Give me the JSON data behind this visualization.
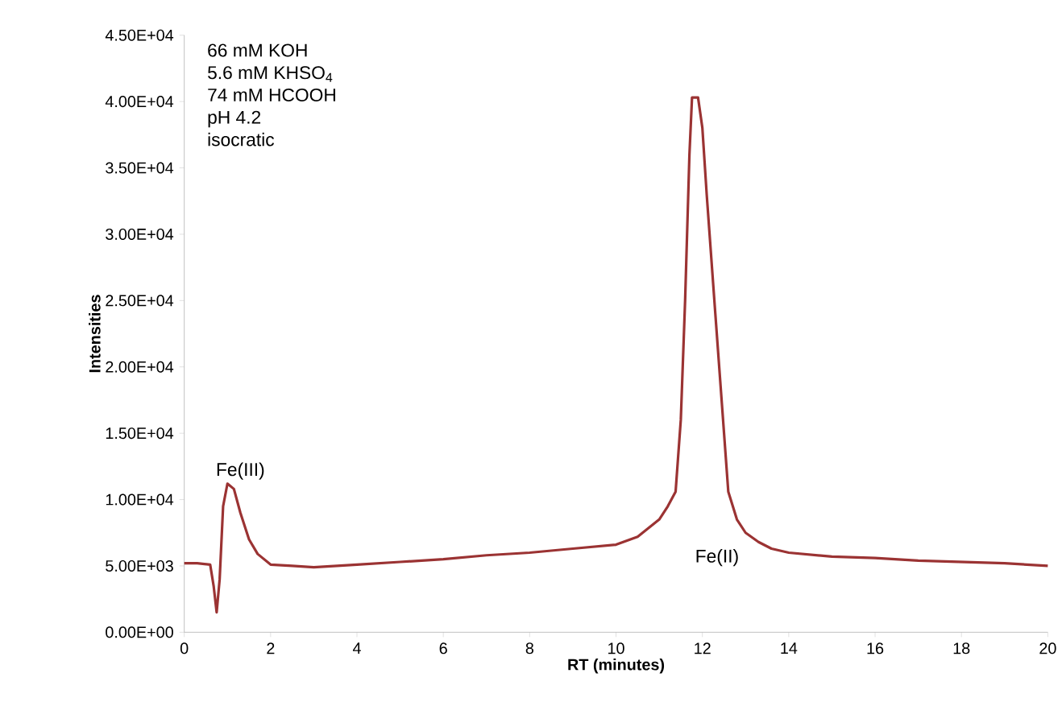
{
  "chart_data": {
    "type": "line",
    "xlabel": "RT (minutes)",
    "ylabel": "Intensities",
    "x": [
      0,
      0.3,
      0.6,
      0.68,
      0.75,
      0.82,
      0.9,
      1.0,
      1.15,
      1.3,
      1.5,
      1.7,
      2.0,
      2.5,
      3.0,
      4.0,
      5.0,
      6.0,
      7.0,
      8.0,
      9.0,
      10.0,
      10.5,
      11.0,
      11.2,
      11.38,
      11.5,
      11.6,
      11.7,
      11.76,
      11.9,
      12.0,
      12.1,
      12.3,
      12.6,
      12.8,
      13.0,
      13.3,
      13.6,
      14.0,
      15.0,
      16.0,
      17.0,
      18.0,
      19.0,
      20.0
    ],
    "series": [
      {
        "color": "#9b3333",
        "values": [
          5200,
          5200,
          5100,
          3500,
          1500,
          4000,
          9500,
          11200,
          10800,
          9000,
          7000,
          5900,
          5100,
          5000,
          4900,
          5100,
          5300,
          5500,
          5800,
          6000,
          6300,
          6600,
          7200,
          8500,
          9500,
          10600,
          16000,
          25000,
          36000,
          40300,
          40300,
          38000,
          33000,
          24000,
          10600,
          8500,
          7500,
          6800,
          6300,
          6000,
          5700,
          5600,
          5400,
          5300,
          5200,
          5000
        ]
      }
    ],
    "marker": "none",
    "line_style": "solid",
    "grid": false,
    "xlim": [
      0,
      20
    ],
    "xticks": [
      0,
      2,
      4,
      6,
      8,
      10,
      12,
      14,
      16,
      18,
      20
    ],
    "ylim": [
      0,
      45000
    ],
    "yticks": [
      {
        "value": 0,
        "label": "0.00E+00"
      },
      {
        "value": 5000,
        "label": "5.00E+03"
      },
      {
        "value": 10000,
        "label": "1.00E+04"
      },
      {
        "value": 15000,
        "label": "1.50E+04"
      },
      {
        "value": 20000,
        "label": "2.00E+04"
      },
      {
        "value": 25000,
        "label": "2.50E+04"
      },
      {
        "value": 30000,
        "label": "3.00E+04"
      },
      {
        "value": 35000,
        "label": "3.50E+04"
      },
      {
        "value": 40000,
        "label": "4.00E+04"
      },
      {
        "value": 45000,
        "label": "4.50E+04"
      }
    ],
    "annotations": [
      "66 mM KOH",
      "5.6 mM KHSO$_{4}$",
      "74 mM HCOOH",
      "pH 4.2",
      "isocratic",
      "Fe(III)",
      "Fe(II)"
    ]
  }
}
